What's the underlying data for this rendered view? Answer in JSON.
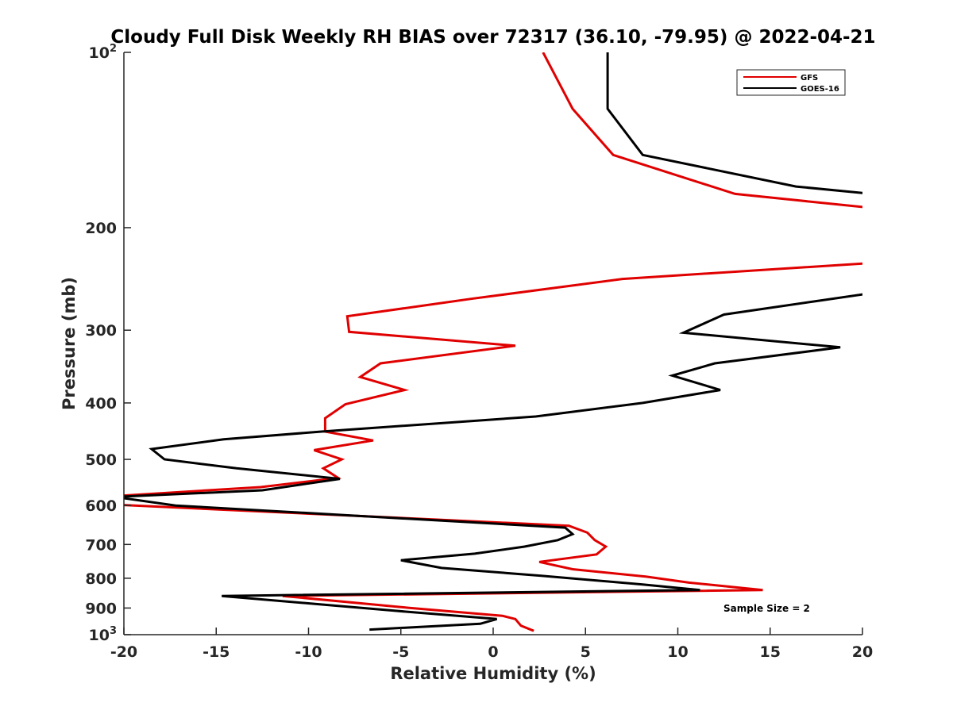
{
  "chart_data": {
    "type": "line",
    "title": "Cloudy Full Disk Weekly RH BIAS over 72317 (36.10, -79.95) @ 2022-04-21",
    "xlabel": "Relative Humidity (%)",
    "ylabel": "Pressure (mb)",
    "xlim": [
      -20,
      20
    ],
    "ylim": [
      100,
      1000
    ],
    "y_scale": "log",
    "y_reversed": true,
    "grid": false,
    "legend_position": "top-right",
    "x_ticks": [
      "-20",
      "-15",
      "-10",
      "-5",
      "0",
      "5",
      "10",
      "15",
      "20"
    ],
    "y_ticks": [
      {
        "value": 100,
        "base": "10",
        "exp": "2"
      },
      {
        "value": 200,
        "label": "200"
      },
      {
        "value": 300,
        "label": "300"
      },
      {
        "value": 400,
        "label": "400"
      },
      {
        "value": 500,
        "label": "500"
      },
      {
        "value": 600,
        "label": "600"
      },
      {
        "value": 700,
        "label": "700"
      },
      {
        "value": 800,
        "label": "800"
      },
      {
        "value": 900,
        "label": "900"
      },
      {
        "value": 1000,
        "base": "10",
        "exp": "3"
      }
    ],
    "annotation": "Sample Size = 2",
    "series": [
      {
        "name": "GFS",
        "color": "#e00000",
        "points": [
          [
            2.7,
            100
          ],
          [
            4.3,
            125
          ],
          [
            6.5,
            150
          ],
          [
            13.1,
            175
          ],
          [
            20.5,
            185
          ],
          [
            20.5,
            230
          ],
          [
            7.0,
            245
          ],
          [
            -1.2,
            265
          ],
          [
            -7.9,
            284
          ],
          [
            -7.8,
            302
          ],
          [
            1.2,
            319
          ],
          [
            -6.1,
            342
          ],
          [
            -7.2,
            361
          ],
          [
            -4.8,
            380
          ],
          [
            -8.0,
            402
          ],
          [
            -9.1,
            425
          ],
          [
            -9.1,
            448
          ],
          [
            -6.5,
            464
          ],
          [
            -9.7,
            482
          ],
          [
            -8.2,
            500
          ],
          [
            -9.2,
            518
          ],
          [
            -8.4,
            538
          ],
          [
            -12.6,
            558
          ],
          [
            -20.5,
            578
          ],
          [
            -20.5,
            598
          ],
          [
            4.1,
            650
          ],
          [
            5.1,
            668
          ],
          [
            5.5,
            688
          ],
          [
            6.1,
            706
          ],
          [
            5.6,
            728
          ],
          [
            2.5,
            750
          ],
          [
            4.3,
            772
          ],
          [
            8.3,
            795
          ],
          [
            10.6,
            814
          ],
          [
            14.6,
            838
          ],
          [
            -11.4,
            858
          ],
          [
            -4.6,
            899
          ],
          [
            0.5,
            928
          ],
          [
            1.2,
            940
          ],
          [
            1.5,
            965
          ],
          [
            2.2,
            985
          ]
        ]
      },
      {
        "name": "GOES-16",
        "color": "#000000",
        "points": [
          [
            6.2,
            100
          ],
          [
            6.2,
            125
          ],
          [
            8.1,
            150
          ],
          [
            16.4,
            170
          ],
          [
            20.5,
            175
          ],
          [
            20.5,
            259
          ],
          [
            12.5,
            282
          ],
          [
            10.3,
            303
          ],
          [
            18.8,
            321
          ],
          [
            12.0,
            342
          ],
          [
            9.7,
            359
          ],
          [
            12.3,
            380
          ],
          [
            8.1,
            400
          ],
          [
            2.3,
            422
          ],
          [
            -9.3,
            448
          ],
          [
            -14.6,
            462
          ],
          [
            -18.5,
            480
          ],
          [
            -17.8,
            500
          ],
          [
            -13.9,
            518
          ],
          [
            -8.3,
            540
          ],
          [
            -12.5,
            565
          ],
          [
            -20.5,
            580
          ],
          [
            -17.2,
            600
          ],
          [
            3.9,
            655
          ],
          [
            4.3,
            672
          ],
          [
            3.5,
            688
          ],
          [
            1.7,
            706
          ],
          [
            -1.0,
            726
          ],
          [
            -5.0,
            745
          ],
          [
            -2.8,
            768
          ],
          [
            2.6,
            792
          ],
          [
            8.1,
            820
          ],
          [
            11.2,
            838
          ],
          [
            -14.7,
            858
          ],
          [
            -5.3,
            910
          ],
          [
            0.2,
            940
          ],
          [
            -0.7,
            958
          ],
          [
            -6.7,
            980
          ]
        ]
      }
    ]
  }
}
